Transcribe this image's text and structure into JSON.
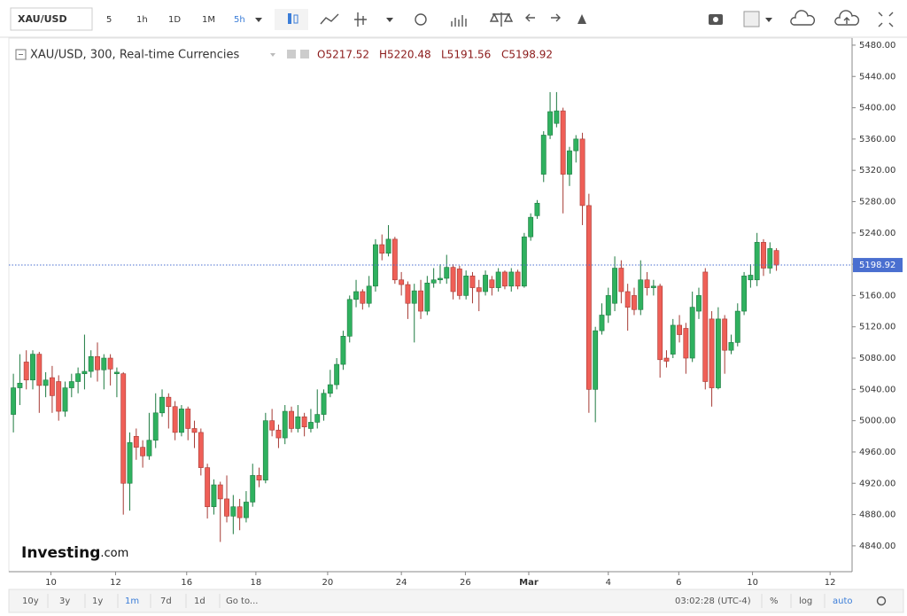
{
  "toolbar": {
    "symbol": "XAU/USD",
    "intervals": [
      "5",
      "1h",
      "1D",
      "1M",
      "5h"
    ]
  },
  "legend": {
    "title": "XAU/USD, 300, Real-time Currencies",
    "values": [
      "O5217.52",
      "H5220.48",
      "L5191.56",
      "C5198.92"
    ]
  },
  "logo": {
    "brand": "Investing",
    "suffix": ".com"
  },
  "bottom_bar": {
    "ranges": [
      "10y",
      "3y",
      "1y",
      "1m",
      "7d",
      "1d"
    ],
    "goto": "Go to...",
    "clock": "03:02:28 (UTC-4)",
    "options": [
      "%",
      "log",
      "auto"
    ]
  },
  "chart_data": {
    "type": "candlestick",
    "up_color": "#2fb15f",
    "down_color": "#ef5f57",
    "open": [
      5008,
      5042,
      5075,
      5052,
      5085,
      5045,
      5055,
      5050,
      5012,
      5042,
      5050,
      5060,
      5063,
      5082,
      5065,
      5080,
      5060,
      5060,
      4920,
      4980,
      4966,
      4955,
      4975,
      5010,
      5030,
      5018,
      4985,
      5015,
      4990,
      4985,
      4940,
      4890,
      4918,
      4900,
      4878,
      4890,
      4876,
      4896,
      4930,
      4924,
      5000,
      4988,
      4978,
      5012,
      4990,
      5005,
      4990,
      4998,
      5008,
      5035,
      5046,
      5072,
      5108,
      5155,
      5165,
      5150,
      5172,
      5225,
      5214,
      5232,
      5180,
      5174,
      5150,
      5166,
      5140,
      5176,
      5180,
      5182,
      5196,
      5194,
      5160,
      5185,
      5170,
      5165,
      5180,
      5170,
      5190,
      5172,
      5190,
      5172,
      5235,
      5262,
      5315,
      5365,
      5380,
      5396,
      5315,
      5345,
      5360,
      5275,
      5040,
      5115,
      5135,
      5150,
      5195,
      5165,
      5160,
      5142,
      5180,
      5170,
      5172,
      5080,
      5085,
      5122,
      5118,
      5080,
      5140,
      5190,
      5130,
      5042,
      5130,
      5090,
      5100,
      5140,
      5180,
      5180,
      5228,
      5195,
      5217.52
    ],
    "high": [
      5060,
      5085,
      5090,
      5090,
      5088,
      5062,
      5070,
      5058,
      5050,
      5060,
      5068,
      5110,
      5090,
      5100,
      5085,
      5085,
      5068,
      5062,
      4985,
      4990,
      4975,
      5010,
      5035,
      5040,
      5035,
      5025,
      5020,
      5018,
      5000,
      4990,
      4945,
      4925,
      4922,
      4930,
      4905,
      4900,
      4910,
      4945,
      4940,
      5010,
      5015,
      4995,
      5020,
      5018,
      5020,
      5010,
      5015,
      5040,
      5040,
      5065,
      5080,
      5115,
      5160,
      5180,
      5168,
      5185,
      5232,
      5238,
      5250,
      5235,
      5190,
      5178,
      5175,
      5180,
      5185,
      5195,
      5200,
      5212,
      5200,
      5198,
      5192,
      5190,
      5180,
      5192,
      5185,
      5195,
      5192,
      5195,
      5193,
      5240,
      5265,
      5282,
      5370,
      5420,
      5420,
      5400,
      5350,
      5365,
      5368,
      5290,
      5120,
      5150,
      5170,
      5210,
      5205,
      5175,
      5170,
      5205,
      5190,
      5180,
      5175,
      5090,
      5130,
      5135,
      5125,
      5165,
      5170,
      5195,
      5140,
      5145,
      5135,
      5110,
      5150,
      5190,
      5200,
      5240,
      5232,
      5228,
      5220.48
    ],
    "low": [
      4985,
      5020,
      5040,
      5040,
      5010,
      5030,
      5010,
      5000,
      5005,
      5030,
      5035,
      5040,
      5055,
      5050,
      5040,
      5045,
      5030,
      4880,
      4885,
      4950,
      4940,
      4950,
      4965,
      5005,
      4990,
      4975,
      4980,
      4975,
      4965,
      4930,
      4875,
      4880,
      4845,
      4870,
      4855,
      4860,
      4870,
      4890,
      4915,
      4920,
      4980,
      4965,
      4970,
      4985,
      4985,
      4980,
      4985,
      4990,
      5000,
      5030,
      5040,
      5065,
      5100,
      5145,
      5142,
      5145,
      5165,
      5205,
      5210,
      5175,
      5160,
      5130,
      5100,
      5130,
      5135,
      5170,
      5175,
      5175,
      5155,
      5155,
      5155,
      5150,
      5140,
      5160,
      5160,
      5165,
      5168,
      5165,
      5168,
      5170,
      5230,
      5258,
      5305,
      5360,
      5375,
      5265,
      5300,
      5330,
      5250,
      5010,
      4998,
      5110,
      5125,
      5140,
      5150,
      5115,
      5135,
      5135,
      5160,
      5160,
      5055,
      5068,
      5080,
      5100,
      5060,
      5075,
      5130,
      5040,
      5018,
      5040,
      5060,
      5085,
      5095,
      5135,
      5170,
      5172,
      5185,
      5188,
      5191.56
    ],
    "close": [
      5042,
      5048,
      5052,
      5085,
      5045,
      5052,
      5032,
      5012,
      5042,
      5050,
      5060,
      5063,
      5082,
      5065,
      5080,
      5066,
      5062,
      4920,
      4972,
      4966,
      4955,
      4975,
      5010,
      5030,
      5018,
      4985,
      5015,
      4990,
      4985,
      4940,
      4890,
      4918,
      4900,
      4878,
      4890,
      4876,
      4896,
      4930,
      4924,
      5000,
      4988,
      4978,
      5012,
      4990,
      5005,
      4992,
      4998,
      5008,
      5035,
      5046,
      5072,
      5108,
      5155,
      5165,
      5150,
      5172,
      5225,
      5214,
      5232,
      5180,
      5174,
      5150,
      5166,
      5140,
      5176,
      5180,
      5182,
      5196,
      5165,
      5160,
      5185,
      5170,
      5165,
      5186,
      5170,
      5190,
      5172,
      5190,
      5172,
      5235,
      5260,
      5278,
      5365,
      5395,
      5396,
      5315,
      5345,
      5360,
      5275,
      5040,
      5115,
      5135,
      5160,
      5195,
      5165,
      5145,
      5142,
      5180,
      5170,
      5172,
      5078,
      5076,
      5122,
      5110,
      5080,
      5145,
      5160,
      5050,
      5042,
      5130,
      5090,
      5100,
      5140,
      5185,
      5186,
      5228,
      5195,
      5220,
      5198.92
    ],
    "last_price": {
      "value": 5198.92,
      "label": "5198.92"
    },
    "xlim": [
      -0.7,
      129.7
    ],
    "xticks": [
      {
        "value": 5.8,
        "label": "10"
      },
      {
        "value": 15.8,
        "label": "12"
      },
      {
        "value": 26.8,
        "label": "16"
      },
      {
        "value": 37.5,
        "label": "18"
      },
      {
        "value": 48.6,
        "label": "20"
      },
      {
        "value": 60,
        "label": "24"
      },
      {
        "value": 69.9,
        "label": "26"
      },
      {
        "value": 79.7,
        "label": "Mar"
      },
      {
        "value": 92,
        "label": "4"
      },
      {
        "value": 102.9,
        "label": "6"
      },
      {
        "value": 114.3,
        "label": "10"
      },
      {
        "value": 126.3,
        "label": "12"
      }
    ],
    "ylim": [
      4807,
      5489
    ],
    "yticks": [
      {
        "value": 4840,
        "label": "4840.00"
      },
      {
        "value": 4880,
        "label": "4880.00"
      },
      {
        "value": 4920,
        "label": "4920.00"
      },
      {
        "value": 4960,
        "label": "4960.00"
      },
      {
        "value": 5000,
        "label": "5000.00"
      },
      {
        "value": 5040,
        "label": "5040.00"
      },
      {
        "value": 5080,
        "label": "5080.00"
      },
      {
        "value": 5120,
        "label": "5120.00"
      },
      {
        "value": 5160,
        "label": "5160.00"
      },
      {
        "value": 5200,
        "label": "5200.00"
      },
      {
        "value": 5240,
        "label": "5240.00"
      },
      {
        "value": 5280,
        "label": "5280.00"
      },
      {
        "value": 5320,
        "label": "5320.00"
      },
      {
        "value": 5360,
        "label": "5360.00"
      },
      {
        "value": 5400,
        "label": "5400.00"
      },
      {
        "value": 5440,
        "label": "5440.00"
      },
      {
        "value": 5480,
        "label": "5480.00"
      }
    ]
  }
}
